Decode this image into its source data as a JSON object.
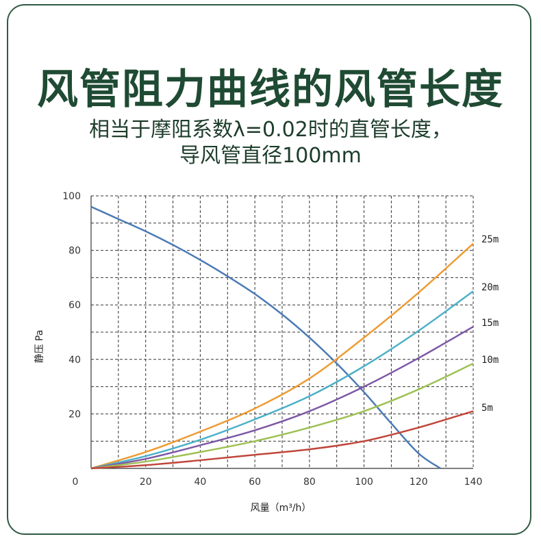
{
  "title": "风管阻力曲线的风管长度",
  "subtitle_line1": "相当于摩阻系数λ=0.02时的直管长度，",
  "subtitle_line2": "导风管直径100mm",
  "chart_data": {
    "type": "line",
    "xlabel": "风量（m³/h）",
    "ylabel": "静压 Pa",
    "xlim": [
      0,
      140
    ],
    "ylim": [
      0,
      100
    ],
    "x_ticks": [
      0,
      20,
      40,
      60,
      80,
      100,
      120,
      140
    ],
    "y_ticks": [
      20,
      40,
      60,
      80,
      100
    ],
    "grid": "dashed",
    "fan_curve": {
      "color": "#4a7ab5",
      "x": [
        0,
        10,
        20,
        30,
        40,
        50,
        60,
        70,
        80,
        90,
        100,
        110,
        120,
        128
      ],
      "y": [
        96,
        91.5,
        87,
        82,
        76.5,
        70.5,
        64,
        56.5,
        48,
        38.5,
        28,
        16.5,
        5.5,
        0
      ]
    },
    "series": [
      {
        "name": "25m",
        "color": "#ee9b33",
        "x": [
          0,
          20,
          40,
          60,
          80,
          100,
          120,
          140
        ],
        "y": [
          0,
          6,
          13.5,
          22,
          33,
          48,
          64.5,
          82.5
        ]
      },
      {
        "name": "20m",
        "color": "#4cb0c9",
        "x": [
          0,
          20,
          40,
          60,
          80,
          100,
          120,
          140
        ],
        "y": [
          0,
          4.5,
          10.5,
          18,
          26.5,
          37.5,
          50.5,
          65
        ]
      },
      {
        "name": "15m",
        "color": "#7d58a6",
        "x": [
          0,
          20,
          40,
          60,
          80,
          100,
          120,
          140
        ],
        "y": [
          0,
          3.5,
          8.5,
          14,
          21,
          30,
          40.5,
          52
        ]
      },
      {
        "name": "10m",
        "color": "#9ec153",
        "x": [
          0,
          20,
          40,
          60,
          80,
          100,
          120,
          140
        ],
        "y": [
          0,
          2.5,
          6,
          10,
          15,
          21,
          29,
          38.5
        ]
      },
      {
        "name": "5m",
        "color": "#c0463a",
        "x": [
          0,
          20,
          40,
          60,
          80,
          100,
          120,
          140
        ],
        "y": [
          0,
          1.2,
          3,
          5,
          7,
          10,
          15,
          21
        ]
      }
    ],
    "origin_label": "0"
  }
}
